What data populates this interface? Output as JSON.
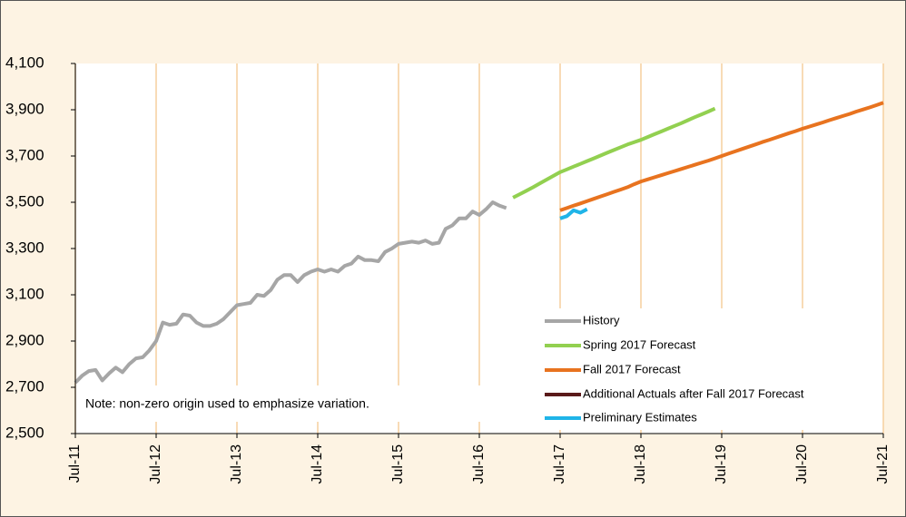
{
  "chart_data": {
    "type": "line",
    "annotation": "Note: non-zero origin used to emphasize variation.",
    "categories": [
      "Jul-11",
      null,
      null,
      null,
      null,
      null,
      null,
      null,
      null,
      null,
      null,
      null,
      "Jul-12",
      null,
      null,
      null,
      null,
      null,
      null,
      null,
      null,
      null,
      null,
      null,
      "Jul-13",
      null,
      null,
      null,
      null,
      null,
      null,
      null,
      null,
      null,
      null,
      null,
      "Jul-14",
      null,
      null,
      null,
      null,
      null,
      null,
      null,
      null,
      null,
      null,
      null,
      "Jul-15",
      null,
      null,
      null,
      null,
      null,
      null,
      null,
      null,
      null,
      null,
      null,
      "Jul-16",
      null,
      null,
      null,
      null,
      null,
      null,
      null,
      null,
      null,
      null,
      null,
      "Jul-17",
      null,
      null,
      null,
      null,
      null,
      null,
      null,
      null,
      null,
      null,
      null,
      "Jul-18",
      null,
      null,
      null,
      null,
      null,
      null,
      null,
      null,
      null,
      null,
      null,
      "Jul-19",
      null,
      null,
      null,
      null,
      null,
      null,
      null,
      null,
      null,
      null,
      null,
      "Jul-20",
      null,
      null,
      null,
      null,
      null,
      null,
      null,
      null,
      null,
      null,
      null,
      "Jul-21"
    ],
    "ylim": [
      2500,
      4100
    ],
    "yticks": [
      {
        "value": 2500,
        "label": "2,500"
      },
      {
        "value": 2700,
        "label": "2,700"
      },
      {
        "value": 2900,
        "label": "2,900"
      },
      {
        "value": 3100,
        "label": "3,100"
      },
      {
        "value": 3300,
        "label": "3,300"
      },
      {
        "value": 3500,
        "label": "3,500"
      },
      {
        "value": 3700,
        "label": "3,700"
      },
      {
        "value": 3900,
        "label": "3,900"
      },
      {
        "value": 4100,
        "label": "4,100"
      }
    ],
    "grid": true,
    "series": [
      {
        "name": "History",
        "color": "#a6a6a6",
        "values": [
          2720,
          2750,
          2770,
          2775,
          2730,
          2760,
          2785,
          2765,
          2800,
          2825,
          2830,
          2860,
          2900,
          2980,
          2970,
          2975,
          3015,
          3010,
          2980,
          2965,
          2965,
          2975,
          2995,
          3025,
          3055,
          3060,
          3065,
          3100,
          3095,
          3120,
          3165,
          3185,
          3185,
          3155,
          3185,
          3200,
          3210,
          3200,
          3210,
          3200,
          3225,
          3235,
          3265,
          3250,
          3250,
          3245,
          3285,
          3300,
          3320,
          3325,
          3330,
          3325,
          3335,
          3320,
          3325,
          3385,
          3400,
          3430,
          3430,
          3460,
          3445,
          3470,
          3500,
          3485,
          3475,
          null,
          null,
          null,
          null,
          null,
          null,
          null,
          null,
          null,
          null,
          null,
          null,
          null,
          null,
          null,
          null,
          null,
          null,
          null,
          null,
          null,
          null,
          null,
          null,
          null,
          null,
          null,
          null,
          null,
          null,
          null,
          null,
          null,
          null,
          null,
          null,
          null,
          null,
          null,
          null,
          null,
          null,
          null,
          null,
          null,
          null,
          null,
          null,
          null,
          null,
          null,
          null,
          null,
          null,
          null,
          null
        ]
      },
      {
        "name": "Spring 2017 Forecast",
        "color": "#92d050",
        "values": [
          null,
          null,
          null,
          null,
          null,
          null,
          null,
          null,
          null,
          null,
          null,
          null,
          null,
          null,
          null,
          null,
          null,
          null,
          null,
          null,
          null,
          null,
          null,
          null,
          null,
          null,
          null,
          null,
          null,
          null,
          null,
          null,
          null,
          null,
          null,
          null,
          null,
          null,
          null,
          null,
          null,
          null,
          null,
          null,
          null,
          null,
          null,
          null,
          null,
          null,
          null,
          null,
          null,
          null,
          null,
          null,
          null,
          null,
          null,
          null,
          null,
          null,
          null,
          null,
          null,
          3520,
          3535,
          3550,
          3565,
          3582,
          3598,
          3614,
          3630,
          3642,
          3654,
          3666,
          3678,
          3690,
          3702,
          3714,
          3726,
          3738,
          3750,
          3760,
          3770,
          3782,
          3794,
          3806,
          3818,
          3830,
          3842,
          3855,
          3868,
          3880,
          3892,
          3905,
          null,
          null,
          null,
          null,
          null,
          null,
          null,
          null,
          null,
          null,
          null,
          null,
          null,
          null,
          null,
          null,
          null,
          null,
          null,
          null,
          null,
          null,
          null,
          null,
          null
        ]
      },
      {
        "name": "Fall 2017 Forecast",
        "color": "#e8731f",
        "values": [
          null,
          null,
          null,
          null,
          null,
          null,
          null,
          null,
          null,
          null,
          null,
          null,
          null,
          null,
          null,
          null,
          null,
          null,
          null,
          null,
          null,
          null,
          null,
          null,
          null,
          null,
          null,
          null,
          null,
          null,
          null,
          null,
          null,
          null,
          null,
          null,
          null,
          null,
          null,
          null,
          null,
          null,
          null,
          null,
          null,
          null,
          null,
          null,
          null,
          null,
          null,
          null,
          null,
          null,
          null,
          null,
          null,
          null,
          null,
          null,
          null,
          null,
          null,
          null,
          null,
          null,
          null,
          null,
          null,
          null,
          null,
          null,
          3465,
          3475,
          3485,
          3495,
          3505,
          3515,
          3525,
          3535,
          3545,
          3555,
          3565,
          3578,
          3590,
          3599,
          3608,
          3617,
          3626,
          3635,
          3644,
          3653,
          3662,
          3671,
          3680,
          3690,
          3700,
          3710,
          3720,
          3730,
          3740,
          3750,
          3760,
          3769,
          3779,
          3789,
          3799,
          3808,
          3818,
          3827,
          3836,
          3845,
          3855,
          3864,
          3873,
          3882,
          3892,
          3901,
          3910,
          3920,
          3930
        ]
      },
      {
        "name": "Additional Actuals after Fall 2017 Forecast",
        "color": "#5a1a1a",
        "values": [
          null,
          null,
          null,
          null,
          null,
          null,
          null,
          null,
          null,
          null,
          null,
          null,
          null,
          null,
          null,
          null,
          null,
          null,
          null,
          null,
          null,
          null,
          null,
          null,
          null,
          null,
          null,
          null,
          null,
          null,
          null,
          null,
          null,
          null,
          null,
          null,
          null,
          null,
          null,
          null,
          null,
          null,
          null,
          null,
          null,
          null,
          null,
          null,
          null,
          null,
          null,
          null,
          null,
          null,
          null,
          null,
          null,
          null,
          null,
          null,
          null,
          null,
          null,
          null,
          null,
          null,
          null,
          null,
          null,
          null,
          null,
          null,
          null,
          null,
          null,
          null,
          null,
          null,
          null,
          null,
          null,
          null,
          null,
          null,
          null,
          null,
          null,
          null,
          null,
          null,
          null,
          null,
          null,
          null,
          null,
          null,
          null,
          null,
          null,
          null,
          null,
          null,
          null,
          null,
          null,
          null,
          null,
          null,
          null,
          null,
          null,
          null,
          null,
          null,
          null,
          null,
          null,
          null,
          null,
          null,
          null
        ]
      },
      {
        "name": "Preliminary Estimates",
        "color": "#1fb4e8",
        "values": [
          null,
          null,
          null,
          null,
          null,
          null,
          null,
          null,
          null,
          null,
          null,
          null,
          null,
          null,
          null,
          null,
          null,
          null,
          null,
          null,
          null,
          null,
          null,
          null,
          null,
          null,
          null,
          null,
          null,
          null,
          null,
          null,
          null,
          null,
          null,
          null,
          null,
          null,
          null,
          null,
          null,
          null,
          null,
          null,
          null,
          null,
          null,
          null,
          null,
          null,
          null,
          null,
          null,
          null,
          null,
          null,
          null,
          null,
          null,
          null,
          null,
          null,
          null,
          null,
          null,
          null,
          null,
          null,
          null,
          null,
          null,
          null,
          3430,
          3440,
          3465,
          3455,
          3470,
          null,
          null,
          null,
          null,
          null,
          null,
          null,
          null,
          null,
          null,
          null,
          null,
          null,
          null,
          null,
          null,
          null,
          null,
          null,
          null,
          null,
          null,
          null,
          null,
          null,
          null,
          null,
          null,
          null,
          null,
          null,
          null,
          null,
          null,
          null,
          null,
          null,
          null,
          null,
          null,
          null,
          null,
          null,
          null
        ]
      }
    ]
  }
}
